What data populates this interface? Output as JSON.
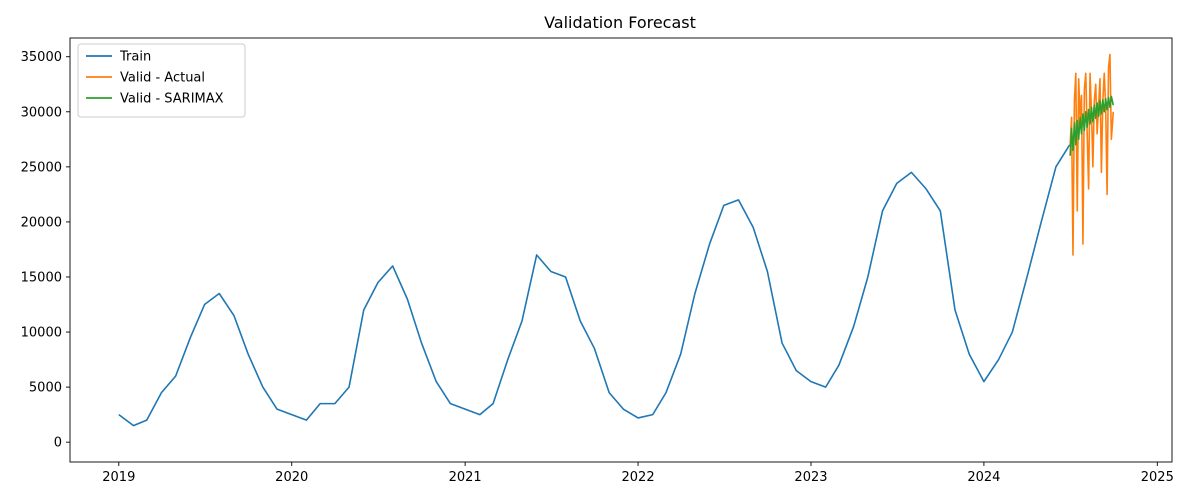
{
  "chart_data": {
    "type": "line",
    "title": "Validation Forecast",
    "xlabel": "",
    "ylabel": "",
    "xlim": [
      "2018-09-20",
      "2025-02-01"
    ],
    "ylim": [
      -1800,
      36700
    ],
    "x_ticks": [
      "2019-01-01",
      "2020-01-01",
      "2021-01-01",
      "2022-01-01",
      "2023-01-01",
      "2024-01-01",
      "2025-01-01"
    ],
    "x_tick_labels": [
      "2019",
      "2020",
      "2021",
      "2022",
      "2023",
      "2024",
      "2025"
    ],
    "y_ticks": [
      0,
      5000,
      10000,
      15000,
      20000,
      25000,
      30000,
      35000
    ],
    "y_tick_labels": [
      "0",
      "5000",
      "10000",
      "15000",
      "20000",
      "25000",
      "30000",
      "35000"
    ],
    "grid": false,
    "legend_position": "top-left",
    "series": [
      {
        "name": "Train",
        "color": "#1f77b4",
        "x": [
          "2019-01-01",
          "2019-02-01",
          "2019-03-01",
          "2019-04-01",
          "2019-05-01",
          "2019-06-01",
          "2019-07-01",
          "2019-08-01",
          "2019-09-01",
          "2019-10-01",
          "2019-11-01",
          "2019-12-01",
          "2020-01-01",
          "2020-02-01",
          "2020-03-01",
          "2020-04-01",
          "2020-05-01",
          "2020-06-01",
          "2020-07-01",
          "2020-08-01",
          "2020-09-01",
          "2020-10-01",
          "2020-11-01",
          "2020-12-01",
          "2021-01-01",
          "2021-02-01",
          "2021-03-01",
          "2021-04-01",
          "2021-05-01",
          "2021-06-01",
          "2021-07-01",
          "2021-08-01",
          "2021-09-01",
          "2021-10-01",
          "2021-11-01",
          "2021-12-01",
          "2022-01-01",
          "2022-02-01",
          "2022-03-01",
          "2022-04-01",
          "2022-05-01",
          "2022-06-01",
          "2022-07-01",
          "2022-08-01",
          "2022-09-01",
          "2022-10-01",
          "2022-11-01",
          "2022-12-01",
          "2023-01-01",
          "2023-02-01",
          "2023-03-01",
          "2023-04-01",
          "2023-05-01",
          "2023-06-01",
          "2023-07-01",
          "2023-08-01",
          "2023-09-01",
          "2023-10-01",
          "2023-11-01",
          "2023-12-01",
          "2024-01-01",
          "2024-02-01",
          "2024-03-01",
          "2024-04-01",
          "2024-05-01",
          "2024-06-01",
          "2024-06-30"
        ],
        "y": [
          2500,
          1500,
          2000,
          4500,
          6000,
          9500,
          12500,
          13500,
          11500,
          8000,
          5000,
          3000,
          2500,
          2000,
          3500,
          3500,
          5000,
          12000,
          14500,
          16000,
          13000,
          9000,
          5500,
          3500,
          3000,
          2500,
          3500,
          7500,
          11000,
          17000,
          15500,
          15000,
          11000,
          8500,
          4500,
          3000,
          2200,
          2500,
          4500,
          8000,
          13500,
          18000,
          21500,
          22000,
          19500,
          15500,
          9000,
          6500,
          5500,
          5000,
          7000,
          10500,
          15000,
          21000,
          23500,
          24500,
          23000,
          21000,
          12000,
          8000,
          5500,
          7500,
          10000,
          15000,
          20000,
          25000,
          27000
        ]
      },
      {
        "name": "Valid - Actual",
        "color": "#ff7f0e",
        "x": [
          "2024-07-01",
          "2024-07-04",
          "2024-07-07",
          "2024-07-10",
          "2024-07-13",
          "2024-07-16",
          "2024-07-19",
          "2024-07-22",
          "2024-07-25",
          "2024-07-28",
          "2024-07-31",
          "2024-08-03",
          "2024-08-06",
          "2024-08-09",
          "2024-08-12",
          "2024-08-15",
          "2024-08-18",
          "2024-08-21",
          "2024-08-24",
          "2024-08-27",
          "2024-08-30",
          "2024-09-02",
          "2024-09-05",
          "2024-09-08",
          "2024-09-11",
          "2024-09-14",
          "2024-09-17",
          "2024-09-20",
          "2024-09-23",
          "2024-09-26",
          "2024-09-30"
        ],
        "y": [
          27000,
          29500,
          17000,
          31000,
          33500,
          21000,
          33000,
          29500,
          31500,
          18000,
          32000,
          33500,
          28000,
          23000,
          33500,
          30000,
          25000,
          31000,
          32500,
          28000,
          30500,
          33000,
          24500,
          31000,
          33500,
          30500,
          22500,
          34000,
          35200,
          27500,
          30000
        ]
      },
      {
        "name": "Valid - SARIMAX",
        "color": "#2ca02c",
        "x": [
          "2024-07-01",
          "2024-07-04",
          "2024-07-07",
          "2024-07-10",
          "2024-07-13",
          "2024-07-16",
          "2024-07-19",
          "2024-07-22",
          "2024-07-25",
          "2024-07-28",
          "2024-07-31",
          "2024-08-03",
          "2024-08-06",
          "2024-08-09",
          "2024-08-12",
          "2024-08-15",
          "2024-08-18",
          "2024-08-21",
          "2024-08-24",
          "2024-08-27",
          "2024-08-30",
          "2024-09-02",
          "2024-09-05",
          "2024-09-08",
          "2024-09-11",
          "2024-09-14",
          "2024-09-17",
          "2024-09-20",
          "2024-09-23",
          "2024-09-26",
          "2024-09-30"
        ],
        "y": [
          26000,
          28500,
          26500,
          29000,
          27000,
          29200,
          27500,
          29500,
          28000,
          29800,
          28300,
          30000,
          28600,
          30200,
          28900,
          30400,
          29100,
          30600,
          29400,
          30800,
          29600,
          31000,
          29800,
          31100,
          30000,
          31200,
          30200,
          31300,
          30400,
          31400,
          30600
        ]
      }
    ]
  }
}
